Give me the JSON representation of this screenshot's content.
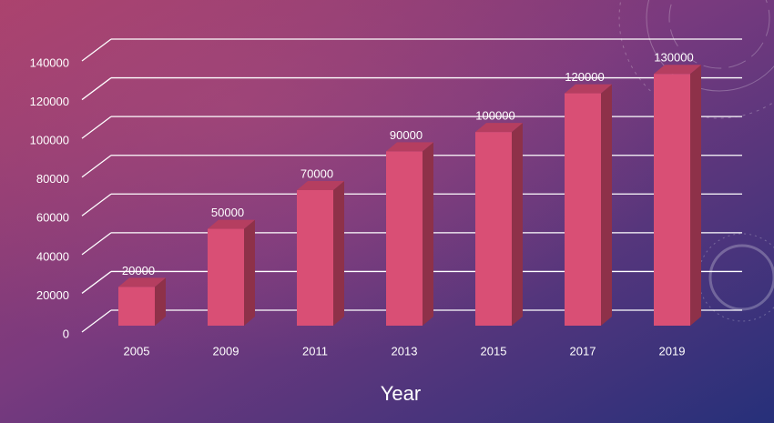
{
  "chart_data": {
    "type": "bar",
    "x_label": "Year",
    "categories": [
      "2005",
      "2009",
      "2011",
      "2013",
      "2015",
      "2017",
      "2019"
    ],
    "values": [
      20000,
      50000,
      70000,
      90000,
      100000,
      120000,
      130000
    ],
    "color": "#d94f75",
    "ylim": [
      0,
      140000
    ],
    "yticks": [
      0,
      20000,
      40000,
      60000,
      80000,
      100000,
      120000,
      140000
    ],
    "grid": true
  }
}
